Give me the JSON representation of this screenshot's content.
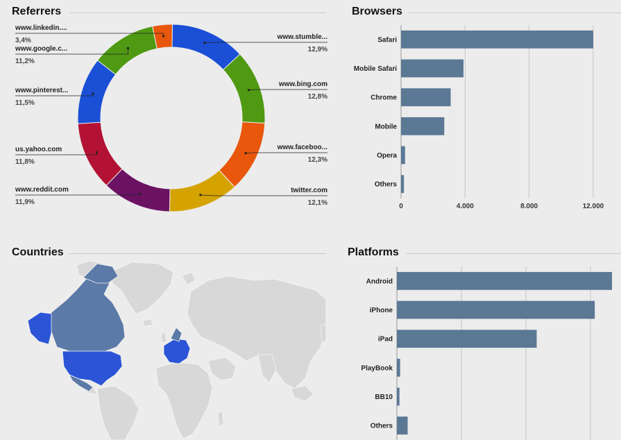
{
  "panels": {
    "referrers_title": "Referrers",
    "browsers_title": "Browsers",
    "countries_title": "Countries",
    "platforms_title": "Platforms"
  },
  "chart_data": [
    {
      "id": "referrers",
      "type": "pie",
      "donut": true,
      "slices": [
        {
          "label": "www.stumble...",
          "value": 12.9,
          "value_label": "12,9%",
          "color": "#1a4fd6"
        },
        {
          "label": "www.bing.com",
          "value": 12.8,
          "value_label": "12,8%",
          "color": "#4f9a12"
        },
        {
          "label": "www.faceboo...",
          "value": 12.3,
          "value_label": "12,3%",
          "color": "#e8570c"
        },
        {
          "label": "twitter.com",
          "value": 12.1,
          "value_label": "12,1%",
          "color": "#d4a300"
        },
        {
          "label": "www.reddit.com",
          "value": 11.9,
          "value_label": "11,9%",
          "color": "#6b1263"
        },
        {
          "label": "us.yahoo.com",
          "value": 11.8,
          "value_label": "11,8%",
          "color": "#b31234"
        },
        {
          "label": "www.pinterest...",
          "value": 11.5,
          "value_label": "11,5%",
          "color": "#1a4fd6"
        },
        {
          "label": "www.google.c...",
          "value": 11.2,
          "value_label": "11,2%",
          "color": "#4f9a12"
        },
        {
          "label": "www.linkedin....",
          "value": 3.4,
          "value_label": "3,4%",
          "color": "#e8570c"
        }
      ]
    },
    {
      "id": "browsers",
      "type": "bar",
      "orientation": "horizontal",
      "categories": [
        "Safari",
        "Mobile Safari",
        "Chrome",
        "Mobile",
        "Opera",
        "Others"
      ],
      "values": [
        12000,
        3900,
        3100,
        2700,
        250,
        180
      ],
      "xlim": [
        0,
        13000
      ],
      "xticks": [
        0,
        4000,
        8000,
        12000
      ],
      "xtick_labels": [
        "0",
        "4.000",
        "8.000",
        "12.000"
      ],
      "grid": true,
      "color": "#5b7895"
    },
    {
      "id": "platforms",
      "type": "bar",
      "orientation": "horizontal",
      "categories": [
        "Android",
        "iPhone",
        "iPad",
        "PlayBook",
        "BB10",
        "Others"
      ],
      "values": [
        100,
        92,
        65,
        1.5,
        1.2,
        5
      ],
      "xlim": [
        0,
        100
      ],
      "grid": true,
      "color": "#5b7895"
    }
  ],
  "map": {
    "highlight_color": "#2b55d6",
    "mid_color": "#5b7aa8",
    "land_color": "#d8d8d8"
  }
}
